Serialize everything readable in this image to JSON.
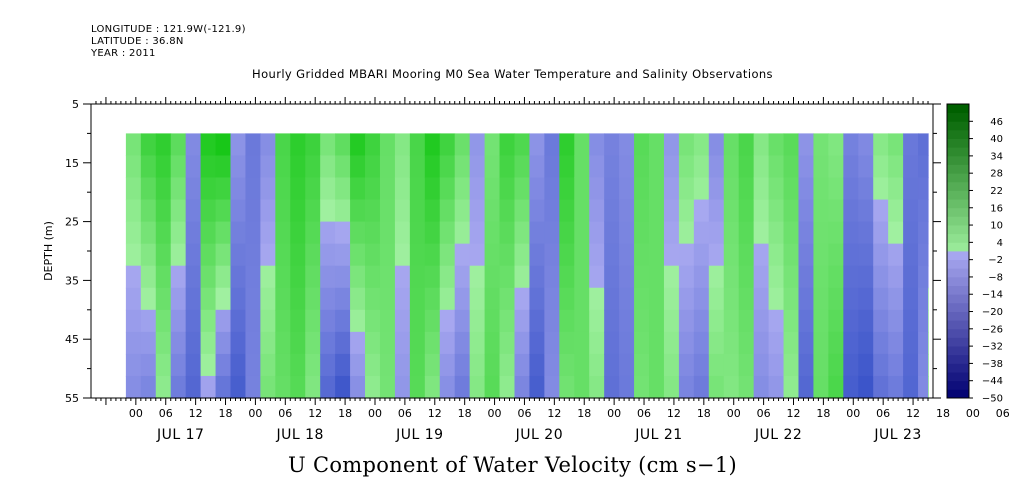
{
  "header": {
    "longitude": "LONGITUDE : 121.9W(-121.9)",
    "latitude": "LATITUDE : 36.8N",
    "year": "YEAR : 2011"
  },
  "chart_data": {
    "type": "heatmap",
    "title": "Hourly Gridded MBARI Mooring M0 Sea Water Temperature and Salinity Observations",
    "caption": "U Component of Water Velocity (cm s−1)",
    "ylabel": "DEPTH (m)",
    "ylim": [
      55,
      5
    ],
    "y_ticks": [
      5,
      15,
      25,
      35,
      45,
      55
    ],
    "x_hour_labels": [
      "00",
      "06",
      "12",
      "18",
      "00",
      "06",
      "12",
      "18",
      "00",
      "06",
      "12",
      "18",
      "00",
      "06",
      "12",
      "18",
      "00",
      "06",
      "12",
      "18",
      "00",
      "06",
      "12",
      "18",
      "00",
      "06",
      "12",
      "18",
      "00",
      "06",
      "12",
      "18"
    ],
    "x_day_labels": [
      "JUL 17",
      "JUL 18",
      "JUL 19",
      "JUL 20",
      "JUL 21",
      "JUL 22",
      "JUL 23"
    ],
    "x_range_hours_from_jul16": [
      15,
      184
    ],
    "data_x_range_hours_from_jul16": [
      22,
      183
    ],
    "data_depth_range": [
      10,
      55
    ],
    "colorbar_levels": [
      "46",
      "40",
      "34",
      "28",
      "22",
      "16",
      "10",
      "4",
      "−2",
      "−8",
      "−14",
      "−20",
      "−26",
      "−32",
      "−38",
      "−44",
      "−50"
    ],
    "colorbar_range": [
      -50,
      52
    ],
    "colorbar_step": 3,
    "colors": {
      "positive_strong": "#00c000",
      "positive_weak": "#a0f0a0",
      "negative_weak": "#a8a8f0",
      "negative_strong": "#2040c0"
    },
    "columns": [
      {
        "hour": 22,
        "u_top": 6,
        "u_bottom": -6
      },
      {
        "hour": 25,
        "u_top": 14,
        "u_bottom": -8
      },
      {
        "hour": 28,
        "u_top": 16,
        "u_bottom": 2
      },
      {
        "hour": 31,
        "u_top": 10,
        "u_bottom": -10
      },
      {
        "hour": 34,
        "u_top": -6,
        "u_bottom": -14
      },
      {
        "hour": 37,
        "u_top": 18,
        "u_bottom": -2
      },
      {
        "hour": 40,
        "u_top": 20,
        "u_bottom": -12
      },
      {
        "hour": 43,
        "u_top": -4,
        "u_bottom": -16
      },
      {
        "hour": 46,
        "u_top": -10,
        "u_bottom": -8
      },
      {
        "hour": 49,
        "u_top": -6,
        "u_bottom": 6
      },
      {
        "hour": 52,
        "u_top": 12,
        "u_bottom": 8
      },
      {
        "hour": 55,
        "u_top": 16,
        "u_bottom": 10
      },
      {
        "hour": 58,
        "u_top": 14,
        "u_bottom": 4
      },
      {
        "hour": 61,
        "u_top": 6,
        "u_bottom": -14
      },
      {
        "hour": 64,
        "u_top": 10,
        "u_bottom": -18
      },
      {
        "hour": 67,
        "u_top": 18,
        "u_bottom": -6
      },
      {
        "hour": 70,
        "u_top": 14,
        "u_bottom": 2
      },
      {
        "hour": 73,
        "u_top": 8,
        "u_bottom": 6
      },
      {
        "hour": 76,
        "u_top": 4,
        "u_bottom": -4
      },
      {
        "hour": 79,
        "u_top": 12,
        "u_bottom": 10
      },
      {
        "hour": 82,
        "u_top": 18,
        "u_bottom": 4
      },
      {
        "hour": 85,
        "u_top": 14,
        "u_bottom": -6
      },
      {
        "hour": 88,
        "u_top": 8,
        "u_bottom": -10
      },
      {
        "hour": 91,
        "u_top": -4,
        "u_bottom": 4
      },
      {
        "hour": 94,
        "u_top": 6,
        "u_bottom": 10
      },
      {
        "hour": 97,
        "u_top": 14,
        "u_bottom": 2
      },
      {
        "hour": 100,
        "u_top": 12,
        "u_bottom": -8
      },
      {
        "hour": 103,
        "u_top": -4,
        "u_bottom": -16
      },
      {
        "hour": 106,
        "u_top": -10,
        "u_bottom": -6
      },
      {
        "hour": 109,
        "u_top": 16,
        "u_bottom": 6
      },
      {
        "hour": 112,
        "u_top": 8,
        "u_bottom": 8
      },
      {
        "hour": 115,
        "u_top": -6,
        "u_bottom": 4
      },
      {
        "hour": 118,
        "u_top": -8,
        "u_bottom": -12
      },
      {
        "hour": 121,
        "u_top": -6,
        "u_bottom": -10
      },
      {
        "hour": 124,
        "u_top": 10,
        "u_bottom": 6
      },
      {
        "hour": 127,
        "u_top": 8,
        "u_bottom": 8
      },
      {
        "hour": 130,
        "u_top": -4,
        "u_bottom": 4
      },
      {
        "hour": 133,
        "u_top": 6,
        "u_bottom": -8
      },
      {
        "hour": 136,
        "u_top": 4,
        "u_bottom": -10
      },
      {
        "hour": 139,
        "u_top": -6,
        "u_bottom": 6
      },
      {
        "hour": 142,
        "u_top": 8,
        "u_bottom": 4
      },
      {
        "hour": 145,
        "u_top": 12,
        "u_bottom": 6
      },
      {
        "hour": 148,
        "u_top": 4,
        "u_bottom": -6
      },
      {
        "hour": 151,
        "u_top": 8,
        "u_bottom": -4
      },
      {
        "hour": 154,
        "u_top": 10,
        "u_bottom": 2
      },
      {
        "hour": 157,
        "u_top": -4,
        "u_bottom": -14
      },
      {
        "hour": 160,
        "u_top": 6,
        "u_bottom": 8
      },
      {
        "hour": 163,
        "u_top": 4,
        "u_bottom": 12
      },
      {
        "hour": 166,
        "u_top": -8,
        "u_bottom": -16
      },
      {
        "hour": 169,
        "u_top": -6,
        "u_bottom": -18
      },
      {
        "hour": 172,
        "u_top": 4,
        "u_bottom": -12
      },
      {
        "hour": 175,
        "u_top": 6,
        "u_bottom": -10
      },
      {
        "hour": 178,
        "u_top": -10,
        "u_bottom": -14
      },
      {
        "hour": 181,
        "u_top": -12,
        "u_bottom": -6
      },
      {
        "hour": 183,
        "u_top": -8,
        "u_bottom": 6
      }
    ]
  }
}
